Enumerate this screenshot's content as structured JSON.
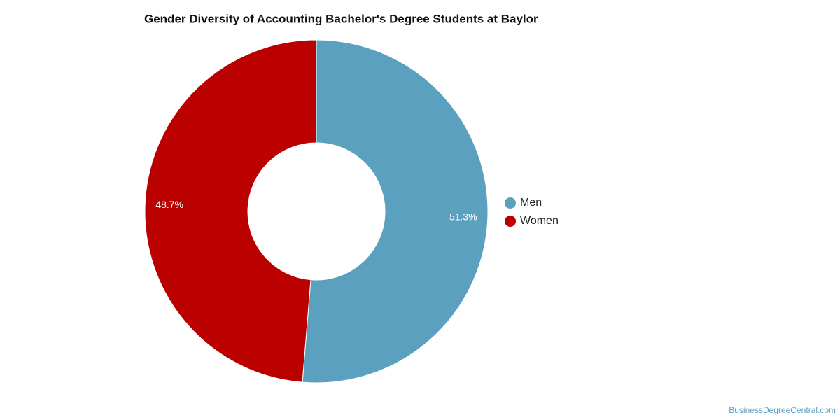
{
  "chart_data": {
    "type": "donut",
    "title": "Gender Diversity of Accounting Bachelor's Degree Students at Baylor",
    "categories": [
      "Men",
      "Women"
    ],
    "values": [
      51.3,
      48.7
    ],
    "value_labels": [
      "51.3%",
      "48.7%"
    ],
    "colors": [
      "#5ba1bf",
      "#bb0000"
    ],
    "legend": "right",
    "credit": "BusinessDegreeCentral.com"
  }
}
